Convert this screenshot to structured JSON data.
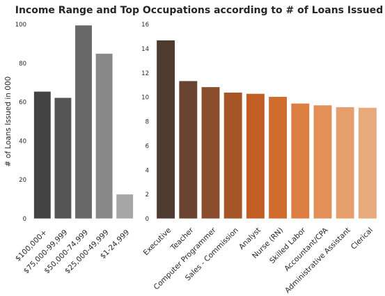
{
  "figure": {
    "title": "Income Range and Top Occupations according to # of Loans Issued"
  },
  "chart_data": [
    {
      "type": "bar",
      "title": "",
      "xlabel": "",
      "ylabel": "# of Loans Issued in 000",
      "ylim": [
        0,
        100
      ],
      "yticks": [
        0,
        20,
        40,
        60,
        80,
        100
      ],
      "grid": false,
      "categories": [
        "$100,000+",
        "$75,000-99,999",
        "$50,000-74,999",
        "$25,000-49,999",
        "$1-24,999"
      ],
      "values": [
        65.5,
        62.3,
        99.6,
        85.0,
        12.6
      ],
      "colors": [
        "#424242",
        "#555555",
        "#686868",
        "#888888",
        "#a6a6a6"
      ]
    },
    {
      "type": "bar",
      "title": "",
      "xlabel": "",
      "ylabel": "",
      "ylim": [
        0,
        16
      ],
      "yticks": [
        0,
        2,
        4,
        6,
        8,
        10,
        12,
        14,
        16
      ],
      "grid": false,
      "categories": [
        "Executive",
        "Teacher",
        "Computer Programmer",
        "Sales - Commission",
        "Analyst",
        "Nurse (RN)",
        "Skilled Labor",
        "Accountant/CPA",
        "Administrative Assistant",
        "Clerical"
      ],
      "values": [
        14.7,
        11.35,
        10.85,
        10.4,
        10.3,
        10.05,
        9.5,
        9.35,
        9.2,
        9.15
      ],
      "colors": [
        "#4e3a2f",
        "#6b4431",
        "#8a4e2f",
        "#a55526",
        "#c25d24",
        "#d06c2d",
        "#dd7f42",
        "#e39058",
        "#e69e6c",
        "#e8aa7c"
      ]
    }
  ]
}
